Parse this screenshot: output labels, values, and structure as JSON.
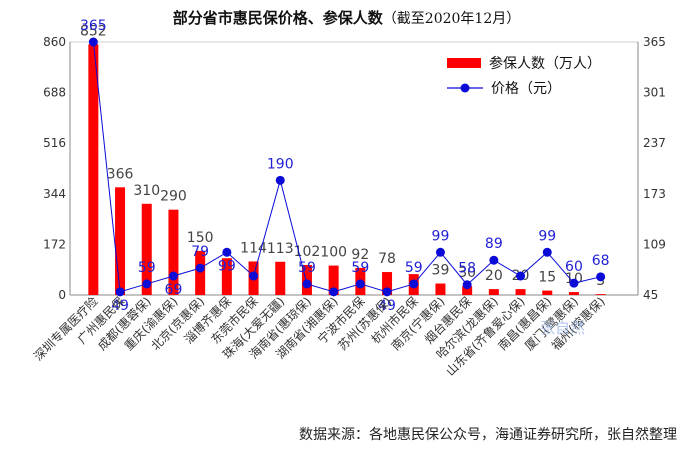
{
  "title": "部分省市惠民保价格、参保人数",
  "title_note": "（截至2020年12月）",
  "source": "数据来源：各地惠民保公众号，海通证券研究所，张自然整理",
  "chart_data": {
    "type": "bar+line",
    "title": "部分省市惠民保价格、参保人数（截至2020年12月）",
    "categories": [
      "深圳专属医疗险",
      "广州惠民保",
      "成都(惠蓉保)",
      "重庆(渝惠保)",
      "北京(京惠保)",
      "淄博齐惠保",
      "东莞市民保",
      "珠海(大爱无疆)",
      "海南省(惠琼保)",
      "湖南省(湘惠保)",
      "宁波市民保",
      "苏州(苏惠保)",
      "杭州市民保",
      "南京(宁惠保)",
      "烟台惠民保",
      "哈尔滨(龙惠保)",
      "山东省(齐鲁爱心保)",
      "南昌(惠昌保)",
      "厦门(鹭惠保)",
      "福州(榕惠保)"
    ],
    "series": [
      {
        "name": "参保人数（万人）",
        "type": "bar",
        "axis": "left",
        "color": "#ff0000",
        "values": [
          852,
          366,
          310,
          290,
          150,
          125,
          114,
          113,
          102,
          100,
          92,
          78,
          71,
          39,
          30,
          20,
          20,
          15,
          10,
          3
        ],
        "labels": [
          "852",
          "366",
          "310",
          "290",
          "150",
          "",
          "114",
          "113",
          "102",
          "100",
          "92",
          "78",
          "",
          "39",
          "30",
          "20",
          "20",
          "15",
          "10",
          "3"
        ]
      },
      {
        "name": "价格（元）",
        "type": "line",
        "axis": "right",
        "color": "#0b0bd8",
        "values": [
          365,
          49,
          59,
          69,
          79,
          99,
          69,
          190,
          59,
          49,
          59,
          49,
          59,
          99,
          58,
          89,
          69,
          99,
          60,
          68
        ],
        "labels": [
          "365",
          "49",
          "59",
          "69",
          "79",
          "99",
          "",
          "190",
          "59",
          "",
          "59",
          "49",
          "59",
          "99",
          "58",
          "89",
          "",
          "99",
          "60",
          "68"
        ]
      }
    ],
    "left_axis": {
      "min": 0,
      "max": 860,
      "ticks": [
        "0",
        "172",
        "344",
        "516",
        "688",
        "860"
      ]
    },
    "right_axis": {
      "min": 45,
      "max": 365,
      "ticks": [
        "45",
        "109",
        "173",
        "237",
        "301",
        "365"
      ]
    },
    "legend_position": "top-right",
    "watermark": "张自然"
  }
}
